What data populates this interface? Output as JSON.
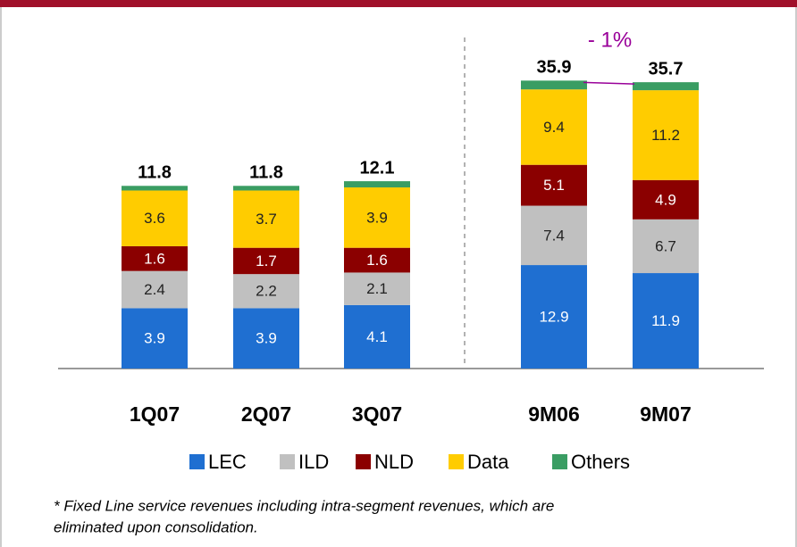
{
  "chart_data": [
    {
      "type": "bar",
      "stacked": true,
      "categories": [
        "1Q07",
        "2Q07",
        "3Q07"
      ],
      "ylim": [
        0,
        21.5
      ],
      "series": [
        {
          "name": "LEC",
          "color": "#1f6fd1",
          "values": [
            3.9,
            3.9,
            4.1
          ]
        },
        {
          "name": "ILD",
          "color": "#c0c0c0",
          "values": [
            2.4,
            2.2,
            2.1
          ]
        },
        {
          "name": "NLD",
          "color": "#8b0000",
          "values": [
            1.6,
            1.7,
            1.6
          ]
        },
        {
          "name": "Data",
          "color": "#ffcc00",
          "values": [
            3.6,
            3.7,
            3.9
          ]
        },
        {
          "name": "Others",
          "color": "#3a9d63",
          "values": [
            0.3,
            0.3,
            0.4
          ]
        }
      ],
      "totals": [
        11.8,
        11.8,
        12.1
      ]
    },
    {
      "type": "bar",
      "stacked": true,
      "categories": [
        "9M06",
        "9M07"
      ],
      "ylim": [
        0,
        41.5
      ],
      "series": [
        {
          "name": "LEC",
          "color": "#1f6fd1",
          "values": [
            12.9,
            11.9
          ]
        },
        {
          "name": "ILD",
          "color": "#c0c0c0",
          "values": [
            7.4,
            6.7
          ]
        },
        {
          "name": "NLD",
          "color": "#8b0000",
          "values": [
            5.1,
            4.9
          ]
        },
        {
          "name": "Data",
          "color": "#ffcc00",
          "values": [
            9.4,
            11.2
          ]
        },
        {
          "name": "Others",
          "color": "#3a9d63",
          "values": [
            1.1,
            1.0
          ]
        }
      ],
      "totals": [
        35.9,
        35.7
      ],
      "annotation": "- 1%"
    }
  ],
  "footnote": [
    "*  Fixed Line service revenues including intra-segment revenues, which are",
    "eliminated upon consolidation."
  ]
}
